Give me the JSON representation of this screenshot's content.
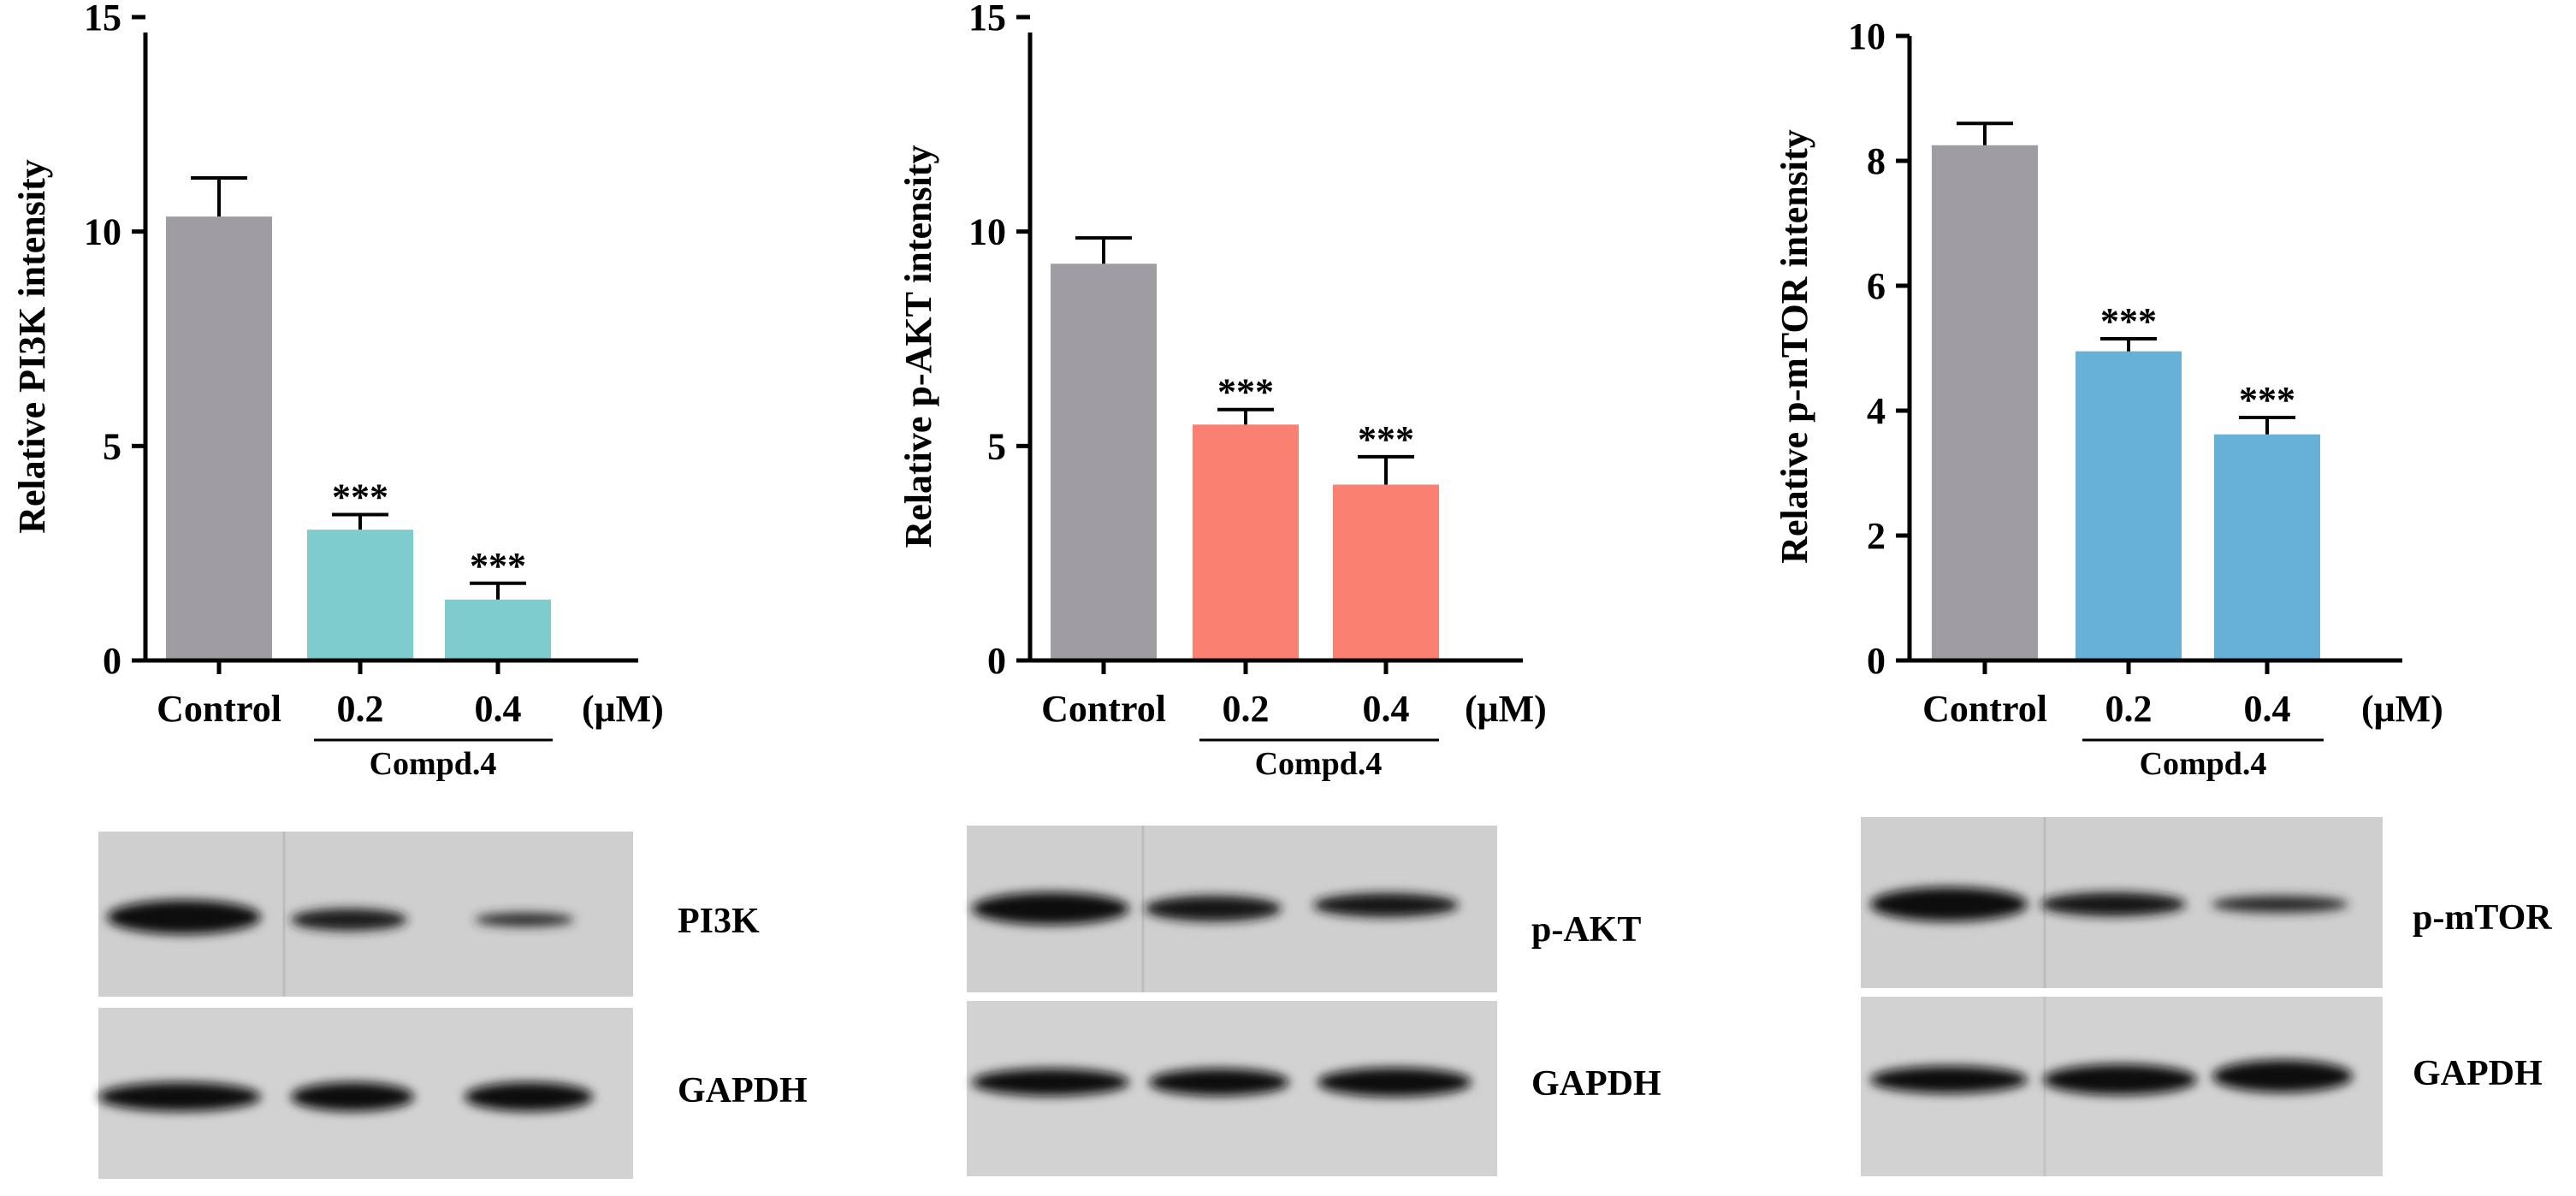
{
  "chart_data": [
    {
      "type": "bar",
      "ylabel": "Relative PI3K intensity",
      "ylim": [
        0,
        15
      ],
      "yticks": [
        "0",
        "5",
        "10",
        "15"
      ],
      "categories": [
        "Control",
        "0.2",
        "0.4"
      ],
      "values": [
        10.35,
        3.05,
        1.42
      ],
      "errors": [
        0.9,
        0.35,
        0.38
      ],
      "bar_colors": [
        "#a09ca3",
        "#7ecdcc",
        "#7ecdcc"
      ],
      "significance": [
        "",
        "***",
        "***"
      ],
      "unit": "(μM)",
      "group_label": "Compd.4",
      "blot": {
        "target_label": "PI3K",
        "control_label": "GAPDH"
      }
    },
    {
      "type": "bar",
      "ylabel": "Relative p-AKT intensity",
      "ylim": [
        0,
        15
      ],
      "yticks": [
        "0",
        "5",
        "10",
        "15"
      ],
      "categories": [
        "Control",
        "0.2",
        "0.4"
      ],
      "values": [
        9.25,
        5.5,
        4.1
      ],
      "errors": [
        0.6,
        0.35,
        0.65
      ],
      "bar_colors": [
        "#a09ca3",
        "#fa8072",
        "#fa8072"
      ],
      "significance": [
        "",
        "***",
        "***"
      ],
      "unit": "(μM)",
      "group_label": "Compd.4",
      "blot": {
        "target_label": "p-AKT",
        "control_label": "GAPDH"
      }
    },
    {
      "type": "bar",
      "ylabel": "Relative p-mTOR intensity",
      "ylim": [
        0,
        10
      ],
      "yticks": [
        "0",
        "2",
        "4",
        "6",
        "8",
        "10"
      ],
      "categories": [
        "Control",
        "0.2",
        "0.4"
      ],
      "values": [
        8.25,
        4.95,
        3.62
      ],
      "errors": [
        0.35,
        0.2,
        0.27
      ],
      "bar_colors": [
        "#a09ca3",
        "#67b0d6",
        "#67b0d6"
      ],
      "significance": [
        "",
        "***",
        "***"
      ],
      "unit": "(μM)",
      "group_label": "Compd.4",
      "blot": {
        "target_label": "p-mTOR",
        "control_label": "GAPDH"
      }
    }
  ]
}
